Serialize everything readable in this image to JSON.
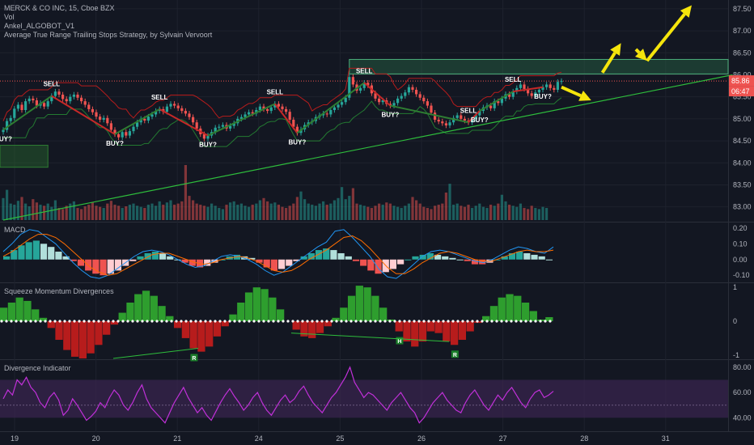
{
  "header": {
    "symbol_line": "MERCK & CO INC, 15, Cboe BZX",
    "indicator_1": "Vol",
    "indicator_2": "Ankel_ALGOBOT_V1",
    "indicator_3": "Average True Range Trailing Stops Strategy, by Sylvain Vervoort"
  },
  "panes": {
    "macd_title": "MACD",
    "squeeze_title": "Squeeze Momentum Divergences",
    "divergence_title": "Divergence Indicator"
  },
  "colors": {
    "background": "#131722",
    "up": "#26a69a",
    "down": "#ef5350",
    "trend_line": "#2ebd3c",
    "trail_stop": "#b71c1c",
    "label_text": "#ffffff",
    "last_price_bg": "#ef5350",
    "arrow": "#f5e50c",
    "macd_line": "#2196f3",
    "signal_line": "#ff6d00",
    "squeeze_pos": "#2e9e2e",
    "squeeze_neg": "#b71c1c",
    "rsi_line": "#c030d8",
    "rsi_band": "#3a2550"
  },
  "chart_data": {
    "type": "candlestick",
    "x_axis": {
      "tick_labels": [
        "19",
        "20",
        "21",
        "24",
        "25",
        "26",
        "27",
        "28",
        "31"
      ]
    },
    "price_axis": {
      "range": [
        82.7,
        87.7
      ],
      "tick_labels": [
        "83.00",
        "83.50",
        "84.00",
        "84.50",
        "85.00",
        "85.50",
        "86.00",
        "86.50",
        "87.00",
        "87.50"
      ],
      "last_price": "85.86",
      "countdown": "06:47"
    },
    "candles_close": [
      84.75,
      84.95,
      85.02,
      85.23,
      85.32,
      85.2,
      85.4,
      85.46,
      85.42,
      85.3,
      85.36,
      85.28,
      85.4,
      85.52,
      85.62,
      85.55,
      85.45,
      85.4,
      85.5,
      85.55,
      85.48,
      85.4,
      85.32,
      85.22,
      85.15,
      85.05,
      84.98,
      85.02,
      84.9,
      84.75,
      84.65,
      84.58,
      84.7,
      84.62,
      84.72,
      84.82,
      84.92,
      85.0,
      84.96,
      85.05,
      85.1,
      85.18,
      85.22,
      85.16,
      85.28,
      85.34,
      85.3,
      85.24,
      85.18,
      85.12,
      85.04,
      84.92,
      84.78,
      84.65,
      84.55,
      84.62,
      84.7,
      84.8,
      84.82,
      84.86,
      84.78,
      84.84,
      84.9,
      85.0,
      85.04,
      85.1,
      85.15,
      85.12,
      85.2,
      85.28,
      85.22,
      85.18,
      85.26,
      85.34,
      85.28,
      85.22,
      85.16,
      84.98,
      84.82,
      84.68,
      84.76,
      84.86,
      84.92,
      84.95,
      85.04,
      85.08,
      85.12,
      85.1,
      85.2,
      85.26,
      85.32,
      85.38,
      85.48,
      85.95,
      85.78,
      85.64,
      85.7,
      85.82,
      85.76,
      85.58,
      85.46,
      85.38,
      85.42,
      85.34,
      85.3,
      85.36,
      85.46,
      85.52,
      85.6,
      85.72,
      85.66,
      85.56,
      85.48,
      85.4,
      85.3,
      85.14,
      84.98,
      84.94,
      84.9,
      84.85,
      84.92,
      85.02,
      85.08,
      85.0,
      84.96,
      84.92,
      84.99,
      85.08,
      85.18,
      85.26,
      85.3,
      85.24,
      85.4,
      85.36,
      85.46,
      85.56,
      85.5,
      85.62,
      85.7,
      85.78,
      85.68,
      85.58,
      85.52,
      85.6,
      85.66,
      85.72,
      85.78,
      85.7,
      85.66,
      85.84,
      85.86
    ],
    "volume": [
      40,
      55,
      30,
      28,
      35,
      42,
      30,
      25,
      38,
      32,
      28,
      26,
      30,
      24,
      36,
      22,
      20,
      26,
      30,
      34,
      22,
      20,
      25,
      28,
      32,
      26,
      24,
      22,
      30,
      35,
      28,
      26,
      22,
      25,
      28,
      30,
      26,
      24,
      22,
      28,
      30,
      26,
      34,
      28,
      32,
      36,
      28,
      30,
      34,
      100,
      44,
      36,
      30,
      28,
      26,
      24,
      30,
      26,
      22,
      20,
      28,
      32,
      34,
      28,
      30,
      26,
      24,
      28,
      30,
      36,
      40,
      34,
      30,
      32,
      28,
      24,
      22,
      26,
      30,
      42,
      52,
      38,
      30,
      28,
      26,
      30,
      34,
      28,
      30,
      36,
      40,
      60,
      38,
      44,
      58,
      30,
      28,
      26,
      24,
      22,
      26,
      30,
      28,
      32,
      30,
      26,
      24,
      22,
      26,
      30,
      42,
      36,
      30,
      24,
      22,
      20,
      26,
      28,
      30,
      50,
      66,
      28,
      30,
      26,
      24,
      28,
      22,
      26,
      30,
      24,
      22,
      28,
      26,
      30,
      46,
      34,
      28,
      26,
      24,
      30,
      22,
      20,
      26,
      22,
      20,
      24,
      22
    ],
    "annotations": [
      {
        "text": "BUY?",
        "index": 0,
        "side": "below"
      },
      {
        "text": "SELL",
        "index": 13,
        "side": "above"
      },
      {
        "text": "BUY?",
        "index": 30,
        "side": "below"
      },
      {
        "text": "SELL",
        "index": 42,
        "side": "above"
      },
      {
        "text": "BUY?",
        "index": 55,
        "side": "below"
      },
      {
        "text": "SELL",
        "index": 73,
        "side": "above"
      },
      {
        "text": "BUY?",
        "index": 79,
        "side": "below"
      },
      {
        "text": "SELL",
        "index": 97,
        "side": "above"
      },
      {
        "text": "BUY?",
        "index": 104,
        "side": "below"
      },
      {
        "text": "SELL",
        "index": 125,
        "side": "above"
      },
      {
        "text": "BUY?",
        "index": 128,
        "side": "below"
      },
      {
        "text": "SELL",
        "index": 137,
        "side": "above"
      },
      {
        "text": "BUY?",
        "index": 145,
        "side": "below"
      }
    ],
    "trend_line": {
      "from": {
        "x": 0,
        "price": 82.7
      },
      "to": {
        "x": 196,
        "price": 86.0
      }
    },
    "resistance_zone": {
      "x_from": 93,
      "x_to": 196,
      "price_from": 86.02,
      "price_to": 86.35
    },
    "demand_zone": {
      "x_from": 0,
      "x_to": 12,
      "price_from": 83.9,
      "price_to": 84.4
    },
    "forecast_arrows_prices": [
      {
        "from": [
          150,
          85.72
        ],
        "to": [
          158,
          85.42
        ]
      },
      {
        "from": [
          161,
          86.05
        ],
        "to": [
          166,
          86.72
        ]
      },
      {
        "from": [
          170,
          86.58
        ],
        "to": [
          173,
          86.32
        ]
      },
      {
        "from": [
          173,
          86.32
        ],
        "to": [
          185,
          87.58
        ]
      }
    ],
    "macd": {
      "axis_tick_labels": [
        "0.20",
        "0.10",
        "0.00",
        "-0.10"
      ],
      "range": [
        -0.14,
        0.23
      ],
      "histogram": [
        0.02,
        0.06,
        0.09,
        0.11,
        0.12,
        0.1,
        0.08,
        0.05,
        0.02,
        -0.01,
        -0.04,
        -0.07,
        -0.09,
        -0.1,
        -0.09,
        -0.07,
        -0.04,
        -0.01,
        0.02,
        0.04,
        0.05,
        0.04,
        0.02,
        0.0,
        -0.02,
        -0.04,
        -0.05,
        -0.04,
        -0.02,
        0.0,
        0.02,
        0.03,
        0.02,
        0.01,
        -0.02,
        -0.05,
        -0.07,
        -0.06,
        -0.04,
        -0.01,
        0.02,
        0.04,
        0.06,
        0.07,
        0.06,
        0.04,
        0.02,
        -0.01,
        -0.04,
        -0.07,
        -0.09,
        -0.08,
        -0.06,
        -0.03,
        0.0,
        0.02,
        0.03,
        0.04,
        0.03,
        0.02,
        0.01,
        0.0,
        -0.01,
        -0.03,
        -0.03,
        -0.02,
        0.0,
        0.02,
        0.04,
        0.05,
        0.04,
        0.03,
        0.02,
        0.0
      ],
      "macd_line": [
        0.05,
        0.1,
        0.16,
        0.19,
        0.18,
        0.14,
        0.1,
        0.04,
        -0.02,
        -0.07,
        -0.11,
        -0.12,
        -0.1,
        -0.06,
        -0.02,
        0.02,
        0.05,
        0.06,
        0.05,
        0.03,
        0.0,
        -0.03,
        -0.05,
        -0.04,
        -0.01,
        0.02,
        0.03,
        0.02,
        0.0,
        -0.03,
        -0.07,
        -0.1,
        -0.08,
        -0.04,
        0.0,
        0.04,
        0.08,
        0.11,
        0.18,
        0.19,
        0.14,
        0.08,
        0.02,
        -0.06,
        -0.11,
        -0.12,
        -0.08,
        -0.03,
        0.02,
        0.05,
        0.06,
        0.05,
        0.03,
        0.01,
        -0.01,
        -0.02,
        0.0,
        0.03,
        0.06,
        0.08,
        0.07,
        0.05,
        0.04,
        0.08
      ],
      "signal_line": [
        0.02,
        0.05,
        0.09,
        0.13,
        0.16,
        0.16,
        0.14,
        0.1,
        0.05,
        0.0,
        -0.05,
        -0.08,
        -0.1,
        -0.09,
        -0.06,
        -0.03,
        0.0,
        0.03,
        0.04,
        0.04,
        0.02,
        0.0,
        -0.02,
        -0.03,
        -0.02,
        0.0,
        0.01,
        0.02,
        0.01,
        -0.01,
        -0.04,
        -0.07,
        -0.08,
        -0.07,
        -0.04,
        0.0,
        0.03,
        0.06,
        0.1,
        0.14,
        0.15,
        0.12,
        0.07,
        0.01,
        -0.05,
        -0.09,
        -0.09,
        -0.06,
        -0.02,
        0.01,
        0.04,
        0.05,
        0.04,
        0.02,
        0.0,
        -0.01,
        -0.01,
        0.01,
        0.03,
        0.05,
        0.06,
        0.05,
        0.05,
        0.06
      ]
    },
    "squeeze": {
      "axis_tick_labels": [
        "1",
        "0",
        "-1"
      ],
      "range": [
        -1.1,
        1.1
      ],
      "histogram": [
        0.4,
        0.55,
        0.7,
        0.6,
        0.35,
        0.1,
        -0.2,
        -0.55,
        -0.85,
        -1.05,
        -1.1,
        -0.95,
        -0.7,
        -0.4,
        -0.1,
        0.25,
        0.55,
        0.8,
        0.9,
        0.75,
        0.45,
        0.15,
        -0.2,
        -0.5,
        -0.8,
        -0.9,
        -0.75,
        -0.45,
        -0.15,
        0.2,
        0.55,
        0.85,
        1.0,
        0.95,
        0.7,
        0.35,
        0.0,
        -0.25,
        -0.45,
        -0.5,
        -0.35,
        -0.15,
        0.1,
        0.4,
        0.75,
        1.05,
        1.0,
        0.75,
        0.4,
        0.05,
        -0.3,
        -0.6,
        -0.75,
        -0.6,
        -0.3,
        -0.35,
        -0.6,
        -0.7,
        -0.55,
        -0.3,
        -0.05,
        0.15,
        0.45,
        0.7,
        0.8,
        0.75,
        0.55,
        0.3,
        0.05,
        0.12
      ],
      "labels": [
        {
          "text": "R",
          "index": 24
        },
        {
          "text": "H",
          "index": 50
        },
        {
          "text": "R",
          "index": 57
        }
      ]
    },
    "divergence": {
      "axis_tick_labels": [
        "80.00",
        "60.00",
        "40.00"
      ],
      "range": [
        30,
        85
      ],
      "band": [
        40,
        70
      ],
      "midline": 50,
      "series": [
        55,
        62,
        58,
        70,
        66,
        72,
        64,
        60,
        52,
        48,
        56,
        60,
        54,
        42,
        46,
        55,
        50,
        44,
        38,
        41,
        45,
        52,
        48,
        56,
        62,
        58,
        50,
        46,
        52,
        60,
        66,
        55,
        48,
        44,
        40,
        36,
        44,
        52,
        58,
        64,
        56,
        50,
        44,
        48,
        42,
        38,
        45,
        52,
        58,
        63,
        57,
        52,
        46,
        50,
        56,
        60,
        52,
        46,
        42,
        48,
        54,
        58,
        52,
        55,
        61,
        65,
        58,
        52,
        48,
        44,
        50,
        56,
        60,
        66,
        72,
        80,
        68,
        62,
        56,
        60,
        58,
        54,
        50,
        46,
        52,
        56,
        60,
        54,
        48,
        44,
        36,
        40,
        46,
        52,
        56,
        60,
        54,
        50,
        46,
        44,
        52,
        58,
        62,
        56,
        50,
        46,
        52,
        58,
        54,
        60,
        64,
        58,
        52,
        48,
        55,
        60,
        62,
        56,
        58,
        61
      ]
    }
  }
}
